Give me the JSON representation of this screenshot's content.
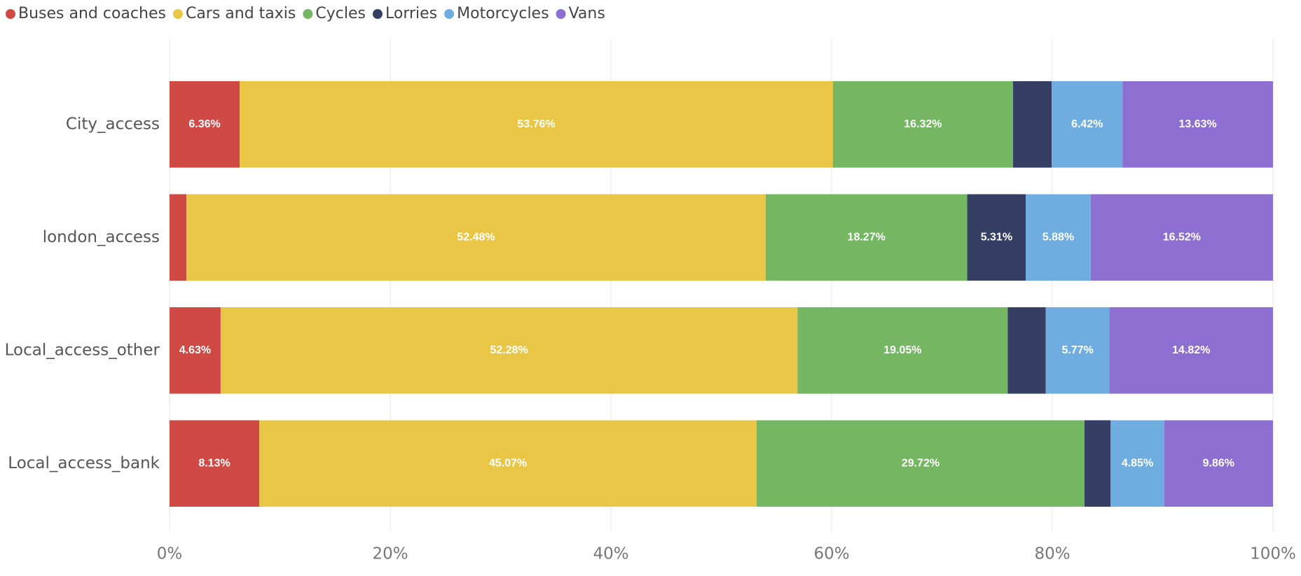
{
  "chart_data": {
    "type": "stacked_bar_horizontal",
    "categories": [
      "City_access",
      "london_access",
      "Local_access_other",
      "Local_access_bank"
    ],
    "series": [
      {
        "name": "Buses and coaches",
        "color": "#d04a45",
        "values": [
          6.36,
          1.54,
          4.63,
          8.13
        ],
        "value_labels": [
          "6.36%",
          null,
          "4.63%",
          "8.13%"
        ]
      },
      {
        "name": "Cars and taxis",
        "color": "#e9c646",
        "values": [
          53.76,
          52.48,
          52.28,
          45.07
        ],
        "value_labels": [
          "53.76%",
          "52.48%",
          "52.28%",
          "45.07%"
        ]
      },
      {
        "name": "Cycles",
        "color": "#74b662",
        "values": [
          16.32,
          18.27,
          19.05,
          29.72
        ],
        "value_labels": [
          "16.32%",
          "18.27%",
          "19.05%",
          "29.72%"
        ]
      },
      {
        "name": "Lorries",
        "color": "#343f63",
        "values": [
          3.51,
          5.31,
          3.45,
          2.37
        ],
        "value_labels": [
          null,
          "5.31%",
          null,
          null
        ]
      },
      {
        "name": "Motorcycles",
        "color": "#6fade0",
        "values": [
          6.42,
          5.88,
          5.77,
          4.85
        ],
        "value_labels": [
          "6.42%",
          "5.88%",
          "5.77%",
          "4.85%"
        ]
      },
      {
        "name": "Vans",
        "color": "#8c6fd1",
        "values": [
          13.63,
          16.52,
          14.82,
          9.86
        ],
        "value_labels": [
          "13.63%",
          "16.52%",
          "14.82%",
          "9.86%"
        ]
      }
    ],
    "xlim": [
      0,
      100
    ],
    "xticks": [
      {
        "value": 0,
        "label": "0%"
      },
      {
        "value": 20,
        "label": "20%"
      },
      {
        "value": 40,
        "label": "40%"
      },
      {
        "value": 60,
        "label": "60%"
      },
      {
        "value": 80,
        "label": "80%"
      },
      {
        "value": 100,
        "label": "100%"
      }
    ],
    "grid": true,
    "legend": "top-left"
  }
}
